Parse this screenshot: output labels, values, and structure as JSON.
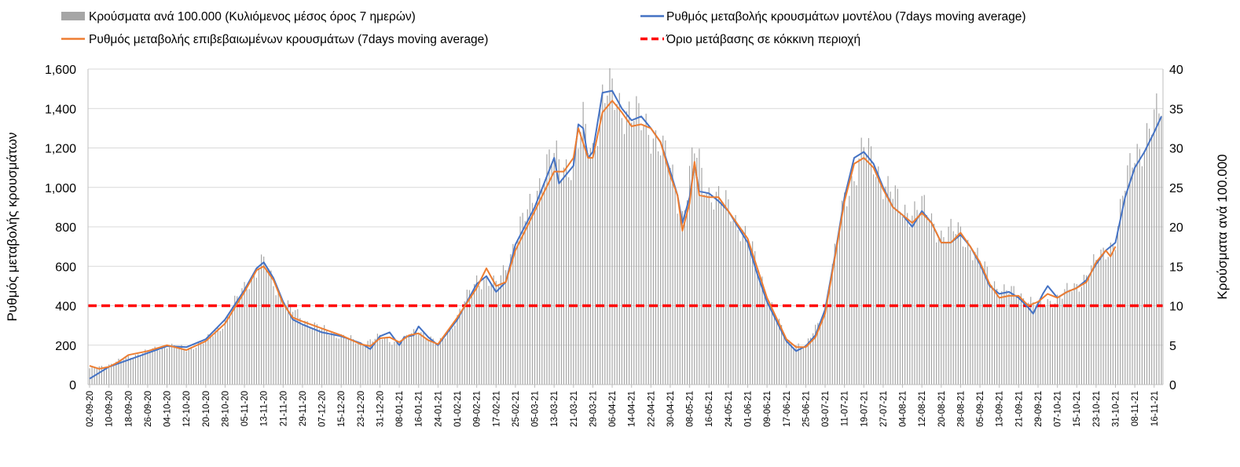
{
  "chart_data": {
    "type": "bar+line",
    "title": "",
    "legend_position": "top",
    "legend": {
      "bars": "Κρούσματα ανά 100.000 (Κυλιόμενος μέσος όρος 7 ημερών)",
      "model": "Ρυθμός μεταβολής κρουσμάτων μοντέλου (7days moving average)",
      "confirmed": "Ρυθμός μεταβολής επιβεβαιωμένων κρουσμάτων (7days moving average)",
      "threshold": "Όριο μετάβασης σε κόκκινη περιοχή"
    },
    "ylabel_left": "Ρυθμός μεταβολής κρουσμάτων",
    "ylabel_right": "Κρούσματα ανά 100.000",
    "ylim_left": [
      0,
      1600
    ],
    "ylim_right": [
      0,
      40
    ],
    "yticks_left": [
      "0",
      "200",
      "400",
      "600",
      "800",
      "1,000",
      "1,200",
      "1,400",
      "1,600"
    ],
    "yticks_right": [
      "0",
      "5",
      "10",
      "15",
      "20",
      "25",
      "30",
      "35",
      "40"
    ],
    "grid": "horizontal",
    "x_start": "2020-09-02",
    "x_end": "2021-11-19",
    "x_tick_labels": [
      "02-09-20",
      "10-09-20",
      "18-09-20",
      "26-09-20",
      "04-10-20",
      "12-10-20",
      "20-10-20",
      "28-10-20",
      "05-11-20",
      "13-11-20",
      "21-11-20",
      "29-11-20",
      "07-12-20",
      "15-12-20",
      "23-12-20",
      "31-12-20",
      "08-01-21",
      "16-01-21",
      "24-01-21",
      "01-02-21",
      "09-02-21",
      "17-02-21",
      "25-02-21",
      "05-03-21",
      "13-03-21",
      "21-03-21",
      "29-03-21",
      "06-04-21",
      "14-04-21",
      "22-04-21",
      "30-04-21",
      "08-05-21",
      "16-05-21",
      "24-05-21",
      "01-06-21",
      "09-06-21",
      "17-06-21",
      "25-06-21",
      "03-07-21",
      "11-07-21",
      "19-07-21",
      "27-07-21",
      "04-08-21",
      "12-08-21",
      "20-08-21",
      "28-08-21",
      "05-09-21",
      "13-09-21",
      "21-09-21",
      "29-09-21",
      "07-10-21",
      "15-10-21",
      "23-10-21",
      "31-10-21",
      "08-11-21",
      "16-11-21"
    ],
    "threshold_value": 400,
    "model_series": [
      [
        "2020-09-02",
        30
      ],
      [
        "2020-09-10",
        90
      ],
      [
        "2020-09-18",
        125
      ],
      [
        "2020-09-26",
        160
      ],
      [
        "2020-10-04",
        195
      ],
      [
        "2020-10-12",
        190
      ],
      [
        "2020-10-20",
        230
      ],
      [
        "2020-10-28",
        330
      ],
      [
        "2020-11-05",
        480
      ],
      [
        "2020-11-10",
        590
      ],
      [
        "2020-11-13",
        620
      ],
      [
        "2020-11-17",
        540
      ],
      [
        "2020-11-21",
        420
      ],
      [
        "2020-11-25",
        330
      ],
      [
        "2020-11-29",
        305
      ],
      [
        "2020-12-07",
        265
      ],
      [
        "2020-12-15",
        245
      ],
      [
        "2020-12-23",
        210
      ],
      [
        "2020-12-27",
        180
      ],
      [
        "2020-12-31",
        245
      ],
      [
        "2021-01-04",
        265
      ],
      [
        "2021-01-08",
        200
      ],
      [
        "2021-01-10",
        240
      ],
      [
        "2021-01-14",
        250
      ],
      [
        "2021-01-16",
        295
      ],
      [
        "2021-01-20",
        240
      ],
      [
        "2021-01-24",
        200
      ],
      [
        "2021-02-01",
        330
      ],
      [
        "2021-02-09",
        510
      ],
      [
        "2021-02-13",
        550
      ],
      [
        "2021-02-17",
        470
      ],
      [
        "2021-02-21",
        520
      ],
      [
        "2021-02-25",
        710
      ],
      [
        "2021-03-05",
        900
      ],
      [
        "2021-03-13",
        1150
      ],
      [
        "2021-03-15",
        1020
      ],
      [
        "2021-03-21",
        1110
      ],
      [
        "2021-03-23",
        1320
      ],
      [
        "2021-03-25",
        1300
      ],
      [
        "2021-03-27",
        1150
      ],
      [
        "2021-03-29",
        1180
      ],
      [
        "2021-04-02",
        1480
      ],
      [
        "2021-04-06",
        1490
      ],
      [
        "2021-04-10",
        1400
      ],
      [
        "2021-04-14",
        1340
      ],
      [
        "2021-04-18",
        1360
      ],
      [
        "2021-04-22",
        1300
      ],
      [
        "2021-04-26",
        1230
      ],
      [
        "2021-04-30",
        1080
      ],
      [
        "2021-05-03",
        960
      ],
      [
        "2021-05-05",
        820
      ],
      [
        "2021-05-08",
        950
      ],
      [
        "2021-05-10",
        1120
      ],
      [
        "2021-05-12",
        980
      ],
      [
        "2021-05-16",
        970
      ],
      [
        "2021-05-20",
        930
      ],
      [
        "2021-05-24",
        880
      ],
      [
        "2021-06-01",
        720
      ],
      [
        "2021-06-05",
        560
      ],
      [
        "2021-06-09",
        420
      ],
      [
        "2021-06-17",
        220
      ],
      [
        "2021-06-21",
        170
      ],
      [
        "2021-06-25",
        195
      ],
      [
        "2021-06-29",
        250
      ],
      [
        "2021-07-03",
        380
      ],
      [
        "2021-07-07",
        650
      ],
      [
        "2021-07-11",
        950
      ],
      [
        "2021-07-15",
        1150
      ],
      [
        "2021-07-19",
        1180
      ],
      [
        "2021-07-23",
        1120
      ],
      [
        "2021-07-27",
        1000
      ],
      [
        "2021-07-31",
        900
      ],
      [
        "2021-08-04",
        860
      ],
      [
        "2021-08-08",
        800
      ],
      [
        "2021-08-12",
        880
      ],
      [
        "2021-08-16",
        820
      ],
      [
        "2021-08-20",
        720
      ],
      [
        "2021-08-24",
        720
      ],
      [
        "2021-08-28",
        760
      ],
      [
        "2021-09-01",
        700
      ],
      [
        "2021-09-05",
        610
      ],
      [
        "2021-09-09",
        500
      ],
      [
        "2021-09-13",
        460
      ],
      [
        "2021-09-17",
        470
      ],
      [
        "2021-09-21",
        440
      ],
      [
        "2021-09-25",
        390
      ],
      [
        "2021-09-27",
        360
      ],
      [
        "2021-10-01",
        460
      ],
      [
        "2021-10-03",
        500
      ],
      [
        "2021-10-07",
        440
      ],
      [
        "2021-10-11",
        470
      ],
      [
        "2021-10-15",
        490
      ],
      [
        "2021-10-19",
        530
      ],
      [
        "2021-10-23",
        610
      ],
      [
        "2021-10-27",
        680
      ],
      [
        "2021-10-31",
        720
      ],
      [
        "2021-11-04",
        950
      ],
      [
        "2021-11-08",
        1100
      ],
      [
        "2021-11-12",
        1180
      ],
      [
        "2021-11-16",
        1280
      ],
      [
        "2021-11-19",
        1360
      ]
    ],
    "confirmed_series": [
      [
        "2020-09-02",
        95
      ],
      [
        "2020-09-06",
        80
      ],
      [
        "2020-09-10",
        90
      ],
      [
        "2020-09-14",
        115
      ],
      [
        "2020-09-18",
        150
      ],
      [
        "2020-09-26",
        170
      ],
      [
        "2020-10-04",
        200
      ],
      [
        "2020-10-12",
        175
      ],
      [
        "2020-10-20",
        220
      ],
      [
        "2020-10-28",
        310
      ],
      [
        "2020-11-05",
        470
      ],
      [
        "2020-11-10",
        580
      ],
      [
        "2020-11-13",
        600
      ],
      [
        "2020-11-17",
        530
      ],
      [
        "2020-11-21",
        410
      ],
      [
        "2020-11-25",
        340
      ],
      [
        "2020-11-29",
        320
      ],
      [
        "2020-12-07",
        285
      ],
      [
        "2020-12-15",
        250
      ],
      [
        "2020-12-23",
        205
      ],
      [
        "2020-12-27",
        195
      ],
      [
        "2020-12-31",
        235
      ],
      [
        "2021-01-04",
        240
      ],
      [
        "2021-01-08",
        215
      ],
      [
        "2021-01-12",
        250
      ],
      [
        "2021-01-16",
        260
      ],
      [
        "2021-01-20",
        225
      ],
      [
        "2021-01-24",
        205
      ],
      [
        "2021-02-01",
        340
      ],
      [
        "2021-02-09",
        490
      ],
      [
        "2021-02-13",
        590
      ],
      [
        "2021-02-17",
        500
      ],
      [
        "2021-02-21",
        520
      ],
      [
        "2021-02-25",
        680
      ],
      [
        "2021-03-05",
        880
      ],
      [
        "2021-03-13",
        1080
      ],
      [
        "2021-03-17",
        1080
      ],
      [
        "2021-03-21",
        1150
      ],
      [
        "2021-03-23",
        1300
      ],
      [
        "2021-03-27",
        1150
      ],
      [
        "2021-03-29",
        1150
      ],
      [
        "2021-04-02",
        1380
      ],
      [
        "2021-04-06",
        1440
      ],
      [
        "2021-04-10",
        1380
      ],
      [
        "2021-04-14",
        1310
      ],
      [
        "2021-04-18",
        1320
      ],
      [
        "2021-04-22",
        1300
      ],
      [
        "2021-04-26",
        1230
      ],
      [
        "2021-04-30",
        1060
      ],
      [
        "2021-05-03",
        960
      ],
      [
        "2021-05-05",
        780
      ],
      [
        "2021-05-08",
        920
      ],
      [
        "2021-05-10",
        1130
      ],
      [
        "2021-05-12",
        960
      ],
      [
        "2021-05-16",
        950
      ],
      [
        "2021-05-20",
        950
      ],
      [
        "2021-05-24",
        880
      ],
      [
        "2021-06-01",
        740
      ],
      [
        "2021-06-05",
        590
      ],
      [
        "2021-06-09",
        440
      ],
      [
        "2021-06-17",
        230
      ],
      [
        "2021-06-21",
        190
      ],
      [
        "2021-06-25",
        190
      ],
      [
        "2021-06-29",
        240
      ],
      [
        "2021-07-03",
        360
      ],
      [
        "2021-07-07",
        640
      ],
      [
        "2021-07-11",
        930
      ],
      [
        "2021-07-15",
        1120
      ],
      [
        "2021-07-19",
        1150
      ],
      [
        "2021-07-23",
        1100
      ],
      [
        "2021-07-27",
        990
      ],
      [
        "2021-07-31",
        900
      ],
      [
        "2021-08-04",
        860
      ],
      [
        "2021-08-08",
        820
      ],
      [
        "2021-08-12",
        870
      ],
      [
        "2021-08-16",
        820
      ],
      [
        "2021-08-20",
        720
      ],
      [
        "2021-08-24",
        720
      ],
      [
        "2021-08-28",
        770
      ],
      [
        "2021-09-01",
        700
      ],
      [
        "2021-09-05",
        620
      ],
      [
        "2021-09-09",
        510
      ],
      [
        "2021-09-13",
        440
      ],
      [
        "2021-09-17",
        450
      ],
      [
        "2021-09-21",
        450
      ],
      [
        "2021-09-25",
        400
      ],
      [
        "2021-09-29",
        420
      ],
      [
        "2021-10-03",
        460
      ],
      [
        "2021-10-07",
        440
      ],
      [
        "2021-10-11",
        470
      ],
      [
        "2021-10-15",
        490
      ],
      [
        "2021-10-19",
        520
      ],
      [
        "2021-10-23",
        620
      ],
      [
        "2021-10-27",
        680
      ],
      [
        "2021-10-29",
        650
      ],
      [
        "2021-10-31",
        700
      ]
    ],
    "bars_per_100k_series": [
      [
        "2020-09-02",
        2.0
      ],
      [
        "2020-09-10",
        2.5
      ],
      [
        "2020-09-18",
        3.5
      ],
      [
        "2020-09-26",
        4.2
      ],
      [
        "2020-10-04",
        5.0
      ],
      [
        "2020-10-12",
        4.5
      ],
      [
        "2020-10-20",
        5.5
      ],
      [
        "2020-10-28",
        8.0
      ],
      [
        "2020-11-05",
        12.5
      ],
      [
        "2020-11-13",
        15.5
      ],
      [
        "2020-11-21",
        10.5
      ],
      [
        "2020-11-29",
        8.3
      ],
      [
        "2020-12-07",
        7.0
      ],
      [
        "2020-12-15",
        6.2
      ],
      [
        "2020-12-23",
        5.2
      ],
      [
        "2020-12-31",
        6.0
      ],
      [
        "2021-01-08",
        5.3
      ],
      [
        "2021-01-16",
        7.0
      ],
      [
        "2021-01-24",
        5.0
      ],
      [
        "2021-02-01",
        8.5
      ],
      [
        "2021-02-09",
        13.5
      ],
      [
        "2021-02-17",
        12.5
      ],
      [
        "2021-02-25",
        18.0
      ],
      [
        "2021-03-05",
        24.5
      ],
      [
        "2021-03-13",
        29.0
      ],
      [
        "2021-03-21",
        27.5
      ],
      [
        "2021-03-25",
        33.0
      ],
      [
        "2021-03-29",
        30.0
      ],
      [
        "2021-04-02",
        36.0
      ],
      [
        "2021-04-06",
        37.0
      ],
      [
        "2021-04-14",
        34.0
      ],
      [
        "2021-04-22",
        32.5
      ],
      [
        "2021-04-30",
        27.5
      ],
      [
        "2021-05-05",
        21.5
      ],
      [
        "2021-05-10",
        29.5
      ],
      [
        "2021-05-16",
        24.5
      ],
      [
        "2021-05-24",
        22.5
      ],
      [
        "2021-06-01",
        18.5
      ],
      [
        "2021-06-09",
        11.5
      ],
      [
        "2021-06-17",
        5.5
      ],
      [
        "2021-06-25",
        4.8
      ],
      [
        "2021-07-03",
        9.5
      ],
      [
        "2021-07-11",
        23.5
      ],
      [
        "2021-07-19",
        30.0
      ],
      [
        "2021-07-27",
        26.0
      ],
      [
        "2021-08-04",
        22.0
      ],
      [
        "2021-08-12",
        22.5
      ],
      [
        "2021-08-20",
        19.0
      ],
      [
        "2021-08-28",
        19.5
      ],
      [
        "2021-09-05",
        15.5
      ],
      [
        "2021-09-13",
        12.0
      ],
      [
        "2021-09-21",
        11.5
      ],
      [
        "2021-09-29",
        10.0
      ],
      [
        "2021-10-07",
        11.0
      ],
      [
        "2021-10-15",
        12.5
      ],
      [
        "2021-10-23",
        15.5
      ],
      [
        "2021-10-31",
        18.5
      ],
      [
        "2021-11-04",
        25.0
      ],
      [
        "2021-11-08",
        30.0
      ],
      [
        "2021-11-12",
        30.5
      ],
      [
        "2021-11-16",
        33.0
      ],
      [
        "2021-11-19",
        36.0
      ]
    ],
    "colors": {
      "bars": "#a6a6a6",
      "model": "#4472c4",
      "confirmed": "#ed7d31",
      "threshold": "#ff0000",
      "grid": "#d9d9d9",
      "axis": "#bfbfbf"
    }
  }
}
